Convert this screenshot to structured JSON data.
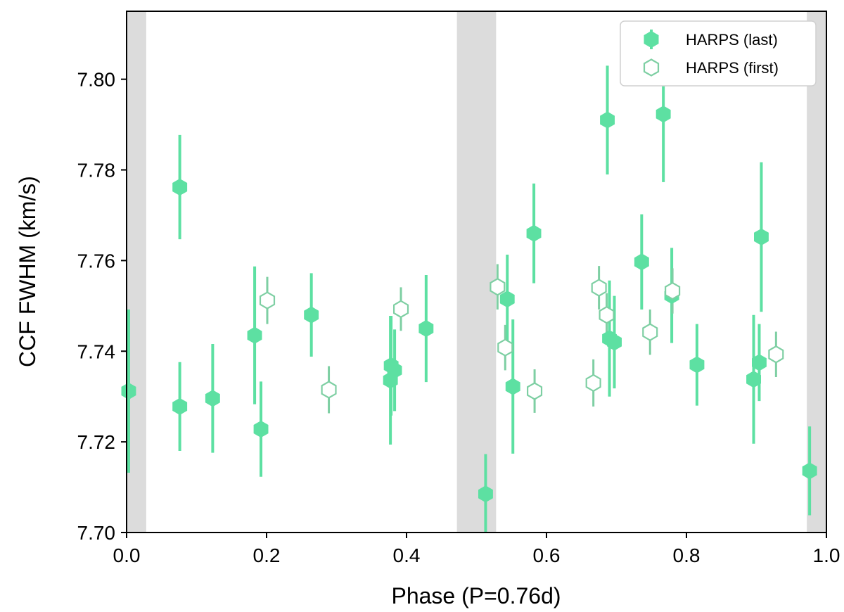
{
  "chart_data": {
    "type": "scatter",
    "xlabel": "Phase (P=0.76d)",
    "ylabel": "CCF FWHM (km/s)",
    "xlim": [
      0.0,
      1.0
    ],
    "ylim": [
      7.7,
      7.815
    ],
    "x_ticks": [
      "0.0",
      "0.2",
      "0.4",
      "0.6",
      "0.8",
      "1.0"
    ],
    "y_ticks": [
      "7.70",
      "7.72",
      "7.74",
      "7.76",
      "7.78",
      "7.80"
    ],
    "grid": false,
    "legend_position": "top-right",
    "shaded_bands": [
      {
        "x0": 0.0,
        "x1": 0.028
      },
      {
        "x0": 0.472,
        "x1": 0.528
      },
      {
        "x0": 0.972,
        "x1": 1.0
      }
    ],
    "colors": {
      "marker": "#5de0a2",
      "open_marker": "#7ecfa3",
      "band": "#dcdcdc"
    },
    "series": [
      {
        "name": "HARPS (last)",
        "style": "filled",
        "points": [
          {
            "x": 0.003,
            "y": 7.7312,
            "err": 0.018
          },
          {
            "x": 0.076,
            "y": 7.7762,
            "err": 0.0115
          },
          {
            "x": 0.076,
            "y": 7.7278,
            "err": 0.0098
          },
          {
            "x": 0.123,
            "y": 7.7296,
            "err": 0.012
          },
          {
            "x": 0.183,
            "y": 7.7435,
            "err": 0.0152
          },
          {
            "x": 0.192,
            "y": 7.7228,
            "err": 0.0105
          },
          {
            "x": 0.264,
            "y": 7.748,
            "err": 0.0092
          },
          {
            "x": 0.377,
            "y": 7.7336,
            "err": 0.0142
          },
          {
            "x": 0.378,
            "y": 7.7368,
            "err": 0.011
          },
          {
            "x": 0.383,
            "y": 7.7358,
            "err": 0.009
          },
          {
            "x": 0.428,
            "y": 7.745,
            "err": 0.0118
          },
          {
            "x": 0.513,
            "y": 7.7085,
            "err": 0.0088
          },
          {
            "x": 0.544,
            "y": 7.7515,
            "err": 0.0098
          },
          {
            "x": 0.552,
            "y": 7.7322,
            "err": 0.0148
          },
          {
            "x": 0.582,
            "y": 7.766,
            "err": 0.011
          },
          {
            "x": 0.687,
            "y": 7.791,
            "err": 0.012
          },
          {
            "x": 0.69,
            "y": 7.7428,
            "err": 0.0128
          },
          {
            "x": 0.697,
            "y": 7.742,
            "err": 0.0102
          },
          {
            "x": 0.736,
            "y": 7.7597,
            "err": 0.0105
          },
          {
            "x": 0.767,
            "y": 7.7923,
            "err": 0.015
          },
          {
            "x": 0.779,
            "y": 7.7523,
            "err": 0.0105
          },
          {
            "x": 0.815,
            "y": 7.737,
            "err": 0.009
          },
          {
            "x": 0.896,
            "y": 7.7338,
            "err": 0.0142
          },
          {
            "x": 0.904,
            "y": 7.7375,
            "err": 0.0085
          },
          {
            "x": 0.907,
            "y": 7.7652,
            "err": 0.0165
          },
          {
            "x": 0.976,
            "y": 7.7136,
            "err": 0.0098
          }
        ]
      },
      {
        "name": "HARPS (first)",
        "style": "open",
        "points": [
          {
            "x": 0.201,
            "y": 7.7512,
            "err": 0.0052
          },
          {
            "x": 0.289,
            "y": 7.7315,
            "err": 0.0052
          },
          {
            "x": 0.392,
            "y": 7.7493,
            "err": 0.0048
          },
          {
            "x": 0.53,
            "y": 7.7542,
            "err": 0.005
          },
          {
            "x": 0.541,
            "y": 7.7408,
            "err": 0.005
          },
          {
            "x": 0.583,
            "y": 7.7312,
            "err": 0.0048
          },
          {
            "x": 0.667,
            "y": 7.733,
            "err": 0.0052
          },
          {
            "x": 0.675,
            "y": 7.754,
            "err": 0.0048
          },
          {
            "x": 0.686,
            "y": 7.748,
            "err": 0.0048
          },
          {
            "x": 0.748,
            "y": 7.7442,
            "err": 0.005
          },
          {
            "x": 0.78,
            "y": 7.7533,
            "err": 0.005
          },
          {
            "x": 0.928,
            "y": 7.7393,
            "err": 0.005
          }
        ]
      }
    ]
  }
}
